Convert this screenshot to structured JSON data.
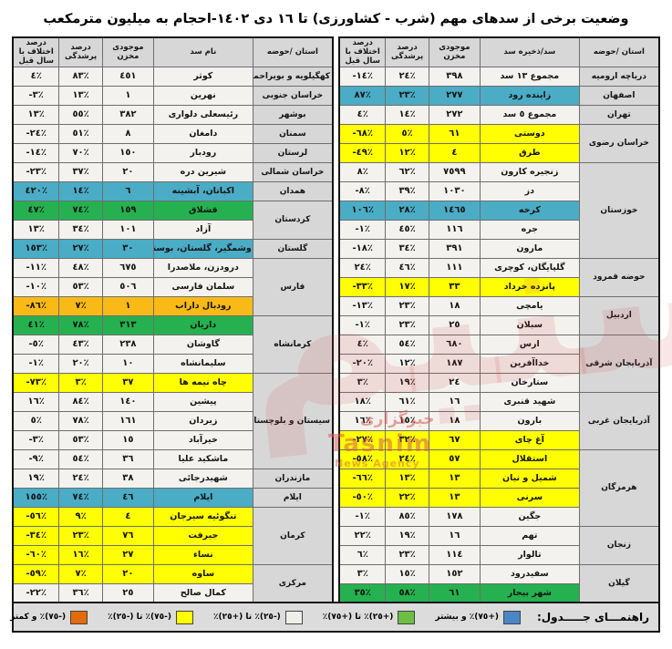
{
  "title": "وضعیت برخی از سدهای مهم (شرب - کشاورزی) تا ١٦ دی ١٤٠٢-احجام به میلیون مترمکعب",
  "chart_data": {
    "type": "table",
    "unit_note": "احجام به میلیون مترمکعب",
    "tables": [
      {
        "id": "table-right",
        "headers": [
          "استان /حوضه",
          "سد/ذخیره سد",
          "موجودی مخزن",
          "درصد پرشدگی",
          "درصد اختلاف با سال قبل"
        ],
        "groups": [
          {
            "province": "دریاچه ارومیه",
            "rows": [
              {
                "dam": "مجموع ١٣ سد",
                "storage": "٣٩٨",
                "fill": "٢٤٪",
                "diff": "-١٤٪",
                "band": "white"
              }
            ]
          },
          {
            "province": "اصفهان",
            "rows": [
              {
                "dam": "زاینده رود",
                "storage": "٢٧٧",
                "fill": "٢٣٪",
                "diff": "٨٧٪",
                "band": "blue"
              }
            ]
          },
          {
            "province": "تهران",
            "rows": [
              {
                "dam": "مجموع ٥ سد",
                "storage": "٢٧٢",
                "fill": "١٤٪",
                "diff": "٤٪",
                "band": "white"
              }
            ]
          },
          {
            "province": "خراسان رضوی",
            "rows": [
              {
                "dam": "دوستی",
                "storage": "٦١",
                "fill": "٥٪",
                "diff": "-٦٨٪",
                "band": "yellow"
              },
              {
                "dam": "طرق",
                "storage": "٤",
                "fill": "١٢٪",
                "diff": "-٤٩٪",
                "band": "yellow"
              }
            ]
          },
          {
            "province": "خوزستان",
            "rows": [
              {
                "dam": "زنجیره کارون",
                "storage": "٧٥٩٩",
                "fill": "٦٢٪",
                "diff": "٨٪",
                "band": "white"
              },
              {
                "dam": "دز",
                "storage": "١٠٣٠",
                "fill": "٣٩٪",
                "diff": "-٨٪",
                "band": "white"
              },
              {
                "dam": "کرخه",
                "storage": "١٤٦٥",
                "fill": "٢٨٪",
                "diff": "١٠٦٪",
                "band": "blue"
              },
              {
                "dam": "جره",
                "storage": "١١٦",
                "fill": "٤٥٪",
                "diff": "-١٪",
                "band": "white"
              },
              {
                "dam": "مارون",
                "storage": "٣٩١",
                "fill": "٣٤٪",
                "diff": "-١٨٪",
                "band": "white"
              }
            ]
          },
          {
            "province": "حوضه قمرود",
            "rows": [
              {
                "dam": "گلپایگان، کوچری",
                "storage": "١١١",
                "fill": "٤٦٪",
                "diff": "٢٤٪",
                "band": "white"
              },
              {
                "dam": "پانزده خرداد",
                "storage": "٣٣",
                "fill": "١٧٪",
                "diff": "-٣٣٪",
                "band": "yellow"
              }
            ]
          },
          {
            "province": "اردبیل",
            "rows": [
              {
                "dam": "یامچی",
                "storage": "١٨",
                "fill": "٢٣٪",
                "diff": "-١٣٪",
                "band": "white"
              },
              {
                "dam": "سبلان",
                "storage": "٢٥",
                "fill": "٢٣٪",
                "diff": "-١٪",
                "band": "white"
              }
            ]
          },
          {
            "province": "آذربایجان شرقی",
            "rows": [
              {
                "dam": "ارس",
                "storage": "٦٨٠",
                "fill": "٥٤٪",
                "diff": "٤٪",
                "band": "white"
              },
              {
                "dam": "خداآفرین",
                "storage": "١٨٧",
                "fill": "١٢٪",
                "diff": "-٢٠٪",
                "band": "white"
              },
              {
                "dam": "ستارخان",
                "storage": "٢٤",
                "fill": "١٩٪",
                "diff": "٣٪",
                "band": "white"
              }
            ]
          },
          {
            "province": "آذربایجان غربی",
            "rows": [
              {
                "dam": "شهید قنبری",
                "storage": "١٦",
                "fill": "٦١٪",
                "diff": "١٨٪",
                "band": "white"
              },
              {
                "dam": "بارون",
                "storage": "١٨",
                "fill": "١٥٪",
                "diff": "١٦٪",
                "band": "white"
              },
              {
                "dam": "آغ چای",
                "storage": "٦٧",
                "fill": "٣٢٪",
                "diff": "-٢٧٪",
                "band": "yellow"
              }
            ]
          },
          {
            "province": "هرمزگان",
            "rows": [
              {
                "dam": "استقلال",
                "storage": "٥٧",
                "fill": "٢٤٪",
                "diff": "-٥٨٪",
                "band": "yellow"
              },
              {
                "dam": "شمیل و نیان",
                "storage": "١٣",
                "fill": "١٣٪",
                "diff": "-٦٦٪",
                "band": "yellow"
              },
              {
                "dam": "سرنی",
                "storage": "١٣",
                "fill": "٢٢٪",
                "diff": "-٥٠٪",
                "band": "yellow"
              },
              {
                "dam": "جگین",
                "storage": "١٧٨",
                "fill": "٨٥٪",
                "diff": "-١٪",
                "band": "white"
              }
            ]
          },
          {
            "province": "زنجان",
            "rows": [
              {
                "dam": "تهم",
                "storage": "١٦",
                "fill": "١٩٪",
                "diff": "٢٢٪",
                "band": "white"
              },
              {
                "dam": "تالوار",
                "storage": "١١٤",
                "fill": "٢٣٪",
                "diff": "٦٪",
                "band": "white"
              }
            ]
          },
          {
            "province": "گیلان",
            "rows": [
              {
                "dam": "سفیدرود",
                "storage": "١٥٢",
                "fill": "١٥٪",
                "diff": "٣٪",
                "band": "white"
              },
              {
                "dam": "شهر بیجار",
                "storage": "٦١",
                "fill": "٥٨٪",
                "diff": "٣٥٪",
                "band": "green"
              }
            ]
          }
        ]
      },
      {
        "id": "table-left",
        "headers": [
          "استان /حوضه",
          "نام سد",
          "موجودی مخزن",
          "درصد پرشدگی",
          "درصد اختلاف با سال قبل"
        ],
        "groups": [
          {
            "province": "کهگیلویه و بویراحمد",
            "rows": [
              {
                "dam": "کوثر",
                "storage": "٤٥١",
                "fill": "٨٣٪",
                "diff": "٤٪",
                "band": "white"
              }
            ]
          },
          {
            "province": "خراسان جنوبی",
            "rows": [
              {
                "dam": "نهرین",
                "storage": "١",
                "fill": "١٣٪",
                "diff": "-٣٪",
                "band": "white"
              }
            ]
          },
          {
            "province": "بوشهر",
            "rows": [
              {
                "dam": "رئیسعلی دلواری",
                "storage": "٣٨٢",
                "fill": "٥٥٪",
                "diff": "١٣٪",
                "band": "white"
              }
            ]
          },
          {
            "province": "سمنان",
            "rows": [
              {
                "dam": "دامغان",
                "storage": "٨",
                "fill": "٥١٪",
                "diff": "-٢٤٪",
                "band": "white"
              }
            ]
          },
          {
            "province": "لرستان",
            "rows": [
              {
                "dam": "رودبار",
                "storage": "١٥٠",
                "fill": "٧٠٪",
                "diff": "-١٤٪",
                "band": "white"
              }
            ]
          },
          {
            "province": "خراسان شمالی",
            "rows": [
              {
                "dam": "شیرین دره",
                "storage": "٢٠",
                "fill": "٣٧٪",
                "diff": "-٢٣٪",
                "band": "white"
              }
            ]
          },
          {
            "province": "همدان",
            "rows": [
              {
                "dam": "اکباتان، آبشینه",
                "storage": "٦",
                "fill": "١٤٪",
                "diff": "٤٢٠٪",
                "band": "blue"
              }
            ]
          },
          {
            "province": "کردستان",
            "rows": [
              {
                "dam": "قشلاق",
                "storage": "١٥٩",
                "fill": "٧٤٪",
                "diff": "٤٧٪",
                "band": "green"
              },
              {
                "dam": "آزاد",
                "storage": "١٠١",
                "fill": "٣٤٪",
                "diff": "١٣٪",
                "band": "white"
              }
            ]
          },
          {
            "province": "گلستان",
            "rows": [
              {
                "dam": "وشمگیر، گلستان، بوستان",
                "storage": "٣٠",
                "fill": "٢٧٪",
                "diff": "١٥٣٪",
                "band": "blue"
              }
            ]
          },
          {
            "province": "فارس",
            "rows": [
              {
                "dam": "درودزن، ملاصدرا",
                "storage": "٦٧٥",
                "fill": "٤٨٪",
                "diff": "-١١٪",
                "band": "white"
              },
              {
                "dam": "سلمان فارسی",
                "storage": "٥٠٦",
                "fill": "٥٣٪",
                "diff": "-١٠٪",
                "band": "white"
              },
              {
                "dam": "رودبال داراب",
                "storage": "١",
                "fill": "٧٪",
                "diff": "-٨٦٪",
                "band": "orange"
              }
            ]
          },
          {
            "province": "کرمانشاه",
            "rows": [
              {
                "dam": "داریان",
                "storage": "٣١٣",
                "fill": "٧٨٪",
                "diff": "٤١٪",
                "band": "green"
              },
              {
                "dam": "گاوشان",
                "storage": "٢٣٨",
                "fill": "٤٣٪",
                "diff": "-٥٪",
                "band": "white"
              },
              {
                "dam": "سلیمانشاه",
                "storage": "١٠",
                "fill": "٢٠٪",
                "diff": "-١٪",
                "band": "white"
              }
            ]
          },
          {
            "province": "سیستان و بلوچستان",
            "rows": [
              {
                "dam": "چاه نیمه ها",
                "storage": "٣٧",
                "fill": "٣٪",
                "diff": "-٧٣٪",
                "band": "yellow"
              },
              {
                "dam": "پیشین",
                "storage": "١٤٠",
                "fill": "٨٤٪",
                "diff": "١٦٪",
                "band": "white"
              },
              {
                "dam": "زیردان",
                "storage": "١٦١",
                "fill": "٧٨٪",
                "diff": "٥٪",
                "band": "white"
              },
              {
                "dam": "خیرآباد",
                "storage": "١٥",
                "fill": "٥٣٪",
                "diff": "-٣٪",
                "band": "white"
              },
              {
                "dam": "ماشکید علیا",
                "storage": "٣٦",
                "fill": "٥٤٪",
                "diff": "-٩٪",
                "band": "white"
              }
            ]
          },
          {
            "province": "مازندران",
            "rows": [
              {
                "dam": "شهیدرجائی",
                "storage": "٣٨",
                "fill": "٢٤٪",
                "diff": "١٩٪",
                "band": "white"
              }
            ]
          },
          {
            "province": "ایلام",
            "rows": [
              {
                "dam": "ایلام",
                "storage": "٤٦",
                "fill": "٧٤٪",
                "diff": "١٥٥٪",
                "band": "blue"
              }
            ]
          },
          {
            "province": "کرمان",
            "rows": [
              {
                "dam": "تنگوئیه سیرجان",
                "storage": "٤",
                "fill": "٩٪",
                "diff": "-٥٦٪",
                "band": "yellow"
              },
              {
                "dam": "جیرفت",
                "storage": "٧٦",
                "fill": "٢٣٪",
                "diff": "-٣٤٪",
                "band": "yellow"
              },
              {
                "dam": "نساء",
                "storage": "٢٧",
                "fill": "١٦٪",
                "diff": "-٦٠٪",
                "band": "yellow"
              }
            ]
          },
          {
            "province": "مرکزی",
            "rows": [
              {
                "dam": "ساوه",
                "storage": "٢٠",
                "fill": "٧٪",
                "diff": "-٥٩٪",
                "band": "yellow"
              },
              {
                "dam": "کمال صالح",
                "storage": "٢٥",
                "fill": "٣٦٪",
                "diff": "-٢٢٪",
                "band": "white"
              }
            ]
          }
        ]
      }
    ]
  },
  "legend": {
    "title": "راهنمـــای جـــــدول:",
    "items": [
      {
        "band": "blue",
        "color": "#4a86c6",
        "label": "(+٧٥)٪ و بیشتر"
      },
      {
        "band": "green",
        "color": "#6cbe45",
        "label": "(+٢٥)٪ تا (+٧٥)٪"
      },
      {
        "band": "white",
        "color": "#efefea",
        "label": "(-٢٥)٪ تا (+٢٥)٪"
      },
      {
        "band": "yellow",
        "color": "#ffff00",
        "label": "(-٧٥)٪ تا (-٢٥)٪"
      },
      {
        "band": "orange",
        "color": "#e36c0a",
        "label": "(-٧٥)٪ و کمتر"
      }
    ]
  },
  "watermark": {
    "brand": "تسنیم",
    "agency_fa": "خبرگزاری",
    "agency_en_1": "Tasnim",
    "agency_en_2": "News Agency"
  },
  "colors": {
    "row_blue": "#4bacc6",
    "row_green": "#25b150",
    "row_yellow": "#ffff00",
    "row_orange": "#f9b916",
    "row_white": "#f3f2ee",
    "header_gray": "#d7d7d7"
  }
}
